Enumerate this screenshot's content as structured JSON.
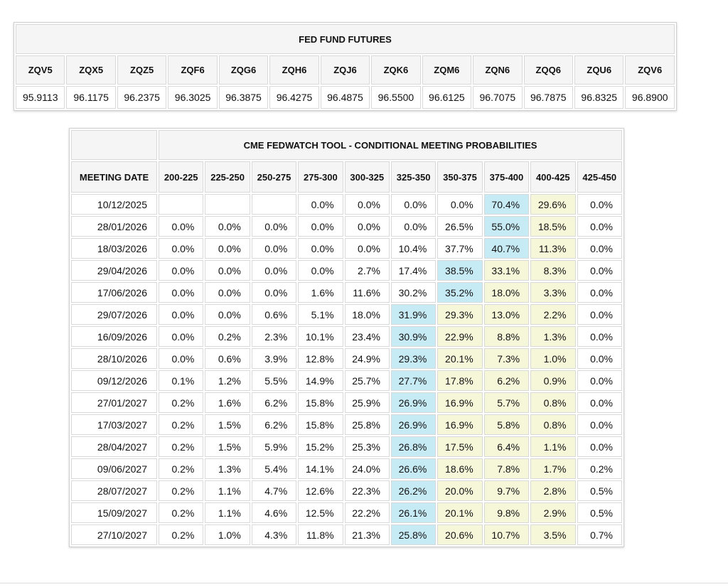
{
  "futures_table": {
    "title": "FED FUND FUTURES",
    "contracts": [
      {
        "code": "ZQV5",
        "price": "95.9113"
      },
      {
        "code": "ZQX5",
        "price": "96.1175"
      },
      {
        "code": "ZQZ5",
        "price": "96.2375"
      },
      {
        "code": "ZQF6",
        "price": "96.3025"
      },
      {
        "code": "ZQG6",
        "price": "96.3875"
      },
      {
        "code": "ZQH6",
        "price": "96.4275"
      },
      {
        "code": "ZQJ6",
        "price": "96.4875"
      },
      {
        "code": "ZQK6",
        "price": "96.5500"
      },
      {
        "code": "ZQM6",
        "price": "96.6125"
      },
      {
        "code": "ZQN6",
        "price": "96.7075"
      },
      {
        "code": "ZQQ6",
        "price": "96.7875"
      },
      {
        "code": "ZQU6",
        "price": "96.8325"
      },
      {
        "code": "ZQV6",
        "price": "96.8900"
      }
    ]
  },
  "fedwatch_table": {
    "title": "CME FEDWATCH TOOL - CONDITIONAL MEETING PROBABILITIES",
    "date_column_header": "MEETING DATE",
    "rate_range_headers": [
      "200-225",
      "225-250",
      "250-275",
      "275-300",
      "300-325",
      "325-350",
      "350-375",
      "375-400",
      "400-425",
      "425-450"
    ],
    "rows": [
      {
        "date": "10/12/2025",
        "values": [
          "",
          "",
          "",
          "0.0%",
          "0.0%",
          "0.0%",
          "0.0%",
          "70.4%",
          "29.6%",
          "0.0%"
        ],
        "styles": [
          "",
          "",
          "",
          "",
          "",
          "",
          "",
          "blue",
          "yellow",
          ""
        ]
      },
      {
        "date": "28/01/2026",
        "values": [
          "0.0%",
          "0.0%",
          "0.0%",
          "0.0%",
          "0.0%",
          "0.0%",
          "26.5%",
          "55.0%",
          "18.5%",
          "0.0%"
        ],
        "styles": [
          "",
          "",
          "",
          "",
          "",
          "",
          "",
          "blue",
          "yellow",
          ""
        ]
      },
      {
        "date": "18/03/2026",
        "values": [
          "0.0%",
          "0.0%",
          "0.0%",
          "0.0%",
          "0.0%",
          "10.4%",
          "37.7%",
          "40.7%",
          "11.3%",
          "0.0%"
        ],
        "styles": [
          "",
          "",
          "",
          "",
          "",
          "",
          "",
          "blue",
          "yellow",
          ""
        ]
      },
      {
        "date": "29/04/2026",
        "values": [
          "0.0%",
          "0.0%",
          "0.0%",
          "0.0%",
          "2.7%",
          "17.4%",
          "38.5%",
          "33.1%",
          "8.3%",
          "0.0%"
        ],
        "styles": [
          "",
          "",
          "",
          "",
          "",
          "",
          "blue",
          "yellow",
          "yellow",
          ""
        ]
      },
      {
        "date": "17/06/2026",
        "values": [
          "0.0%",
          "0.0%",
          "0.0%",
          "1.6%",
          "11.6%",
          "30.2%",
          "35.2%",
          "18.0%",
          "3.3%",
          "0.0%"
        ],
        "styles": [
          "",
          "",
          "",
          "",
          "",
          "",
          "blue",
          "yellow",
          "yellow",
          ""
        ]
      },
      {
        "date": "29/07/2026",
        "values": [
          "0.0%",
          "0.0%",
          "0.6%",
          "5.1%",
          "18.0%",
          "31.9%",
          "29.3%",
          "13.0%",
          "2.2%",
          "0.0%"
        ],
        "styles": [
          "",
          "",
          "",
          "",
          "",
          "blue",
          "yellow",
          "yellow",
          "yellow",
          ""
        ]
      },
      {
        "date": "16/09/2026",
        "values": [
          "0.0%",
          "0.2%",
          "2.3%",
          "10.1%",
          "23.4%",
          "30.9%",
          "22.9%",
          "8.8%",
          "1.3%",
          "0.0%"
        ],
        "styles": [
          "",
          "",
          "",
          "",
          "",
          "blue",
          "yellow",
          "yellow",
          "yellow",
          ""
        ]
      },
      {
        "date": "28/10/2026",
        "values": [
          "0.0%",
          "0.6%",
          "3.9%",
          "12.8%",
          "24.9%",
          "29.3%",
          "20.1%",
          "7.3%",
          "1.0%",
          "0.0%"
        ],
        "styles": [
          "",
          "",
          "",
          "",
          "",
          "blue",
          "yellow",
          "yellow",
          "yellow",
          ""
        ]
      },
      {
        "date": "09/12/2026",
        "values": [
          "0.1%",
          "1.2%",
          "5.5%",
          "14.9%",
          "25.7%",
          "27.7%",
          "17.8%",
          "6.2%",
          "0.9%",
          "0.0%"
        ],
        "styles": [
          "",
          "",
          "",
          "",
          "",
          "blue",
          "yellow",
          "yellow",
          "yellow",
          ""
        ]
      },
      {
        "date": "27/01/2027",
        "values": [
          "0.2%",
          "1.6%",
          "6.2%",
          "15.8%",
          "25.9%",
          "26.9%",
          "16.9%",
          "5.7%",
          "0.8%",
          "0.0%"
        ],
        "styles": [
          "",
          "",
          "",
          "",
          "",
          "blue",
          "yellow",
          "yellow",
          "yellow",
          ""
        ]
      },
      {
        "date": "17/03/2027",
        "values": [
          "0.2%",
          "1.5%",
          "6.2%",
          "15.8%",
          "25.8%",
          "26.9%",
          "16.9%",
          "5.8%",
          "0.8%",
          "0.0%"
        ],
        "styles": [
          "",
          "",
          "",
          "",
          "",
          "blue",
          "yellow",
          "yellow",
          "yellow",
          ""
        ]
      },
      {
        "date": "28/04/2027",
        "values": [
          "0.2%",
          "1.5%",
          "5.9%",
          "15.2%",
          "25.3%",
          "26.8%",
          "17.5%",
          "6.4%",
          "1.1%",
          "0.0%"
        ],
        "styles": [
          "",
          "",
          "",
          "",
          "",
          "blue",
          "yellow",
          "yellow",
          "yellow",
          ""
        ]
      },
      {
        "date": "09/06/2027",
        "values": [
          "0.2%",
          "1.3%",
          "5.4%",
          "14.1%",
          "24.0%",
          "26.6%",
          "18.6%",
          "7.8%",
          "1.7%",
          "0.2%"
        ],
        "styles": [
          "",
          "",
          "",
          "",
          "",
          "blue",
          "yellow",
          "yellow",
          "yellow",
          ""
        ]
      },
      {
        "date": "28/07/2027",
        "values": [
          "0.2%",
          "1.1%",
          "4.7%",
          "12.6%",
          "22.3%",
          "26.2%",
          "20.0%",
          "9.7%",
          "2.8%",
          "0.5%"
        ],
        "styles": [
          "",
          "",
          "",
          "",
          "",
          "blue",
          "yellow",
          "yellow",
          "yellow",
          ""
        ]
      },
      {
        "date": "15/09/2027",
        "values": [
          "0.2%",
          "1.1%",
          "4.6%",
          "12.5%",
          "22.2%",
          "26.1%",
          "20.1%",
          "9.8%",
          "2.9%",
          "0.5%"
        ],
        "styles": [
          "",
          "",
          "",
          "",
          "",
          "blue",
          "yellow",
          "yellow",
          "yellow",
          ""
        ]
      },
      {
        "date": "27/10/2027",
        "values": [
          "0.2%",
          "1.0%",
          "4.3%",
          "11.8%",
          "21.3%",
          "25.8%",
          "20.6%",
          "10.7%",
          "3.5%",
          "0.7%"
        ],
        "styles": [
          "",
          "",
          "",
          "",
          "",
          "blue",
          "yellow",
          "yellow",
          "yellow",
          ""
        ]
      }
    ]
  },
  "colors": {
    "highlight_blue": "#c7ebf5",
    "highlight_yellow": "#f6f6d9",
    "header_bg": "#f5f5f5",
    "cell_border": "#d9d9d9"
  }
}
